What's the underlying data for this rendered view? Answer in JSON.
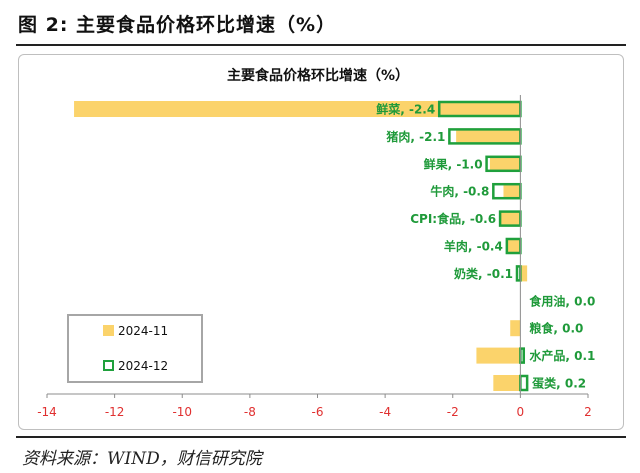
{
  "figure": {
    "title": "图 2:  主要食品价格环比增速（%）",
    "source": "资料来源：WIND，财信研究院"
  },
  "colors": {
    "series_2024_11": "#fbd36b",
    "series_2024_12": "#1fa03c",
    "axis_labels": "#e03030",
    "data_labels": "#1f9a3a"
  },
  "chart_data": {
    "type": "bar",
    "orientation": "horizontal",
    "title": "主要食品价格环比增速（%）",
    "categories": [
      "鲜菜",
      "猪肉",
      "鲜果",
      "牛肉",
      "CPI:食品",
      "羊肉",
      "奶类",
      "食用油",
      "粮食",
      "水产品",
      "蛋类"
    ],
    "series": [
      {
        "name": "2024-11",
        "style": "filled",
        "values": [
          -13.2,
          -1.9,
          -0.9,
          -0.5,
          -0.6,
          -0.4,
          0.2,
          0.0,
          -0.3,
          -1.3,
          -0.8
        ]
      },
      {
        "name": "2024-12",
        "style": "outline",
        "values": [
          -2.4,
          -2.1,
          -1.0,
          -0.8,
          -0.6,
          -0.4,
          -0.1,
          0.0,
          0.0,
          0.1,
          0.2
        ]
      }
    ],
    "data_labels": [
      "鲜菜, -2.4",
      "猪肉, -2.1",
      "鲜果, -1.0",
      "牛肉, -0.8",
      "CPI:食品, -0.6",
      "羊肉, -0.4",
      "奶类, -0.1",
      "食用油, 0.0",
      "粮食, 0.0",
      "水产品, 0.1",
      "蛋类, 0.2"
    ],
    "x_ticks": [
      "-14",
      "-12",
      "-10",
      "-8",
      "-6",
      "-4",
      "-2",
      "0",
      "2"
    ],
    "xlim": [
      -14,
      2
    ],
    "grid": false,
    "legend": {
      "placement": "bottom-left",
      "entries": [
        "2024-11",
        "2024-12"
      ]
    }
  }
}
